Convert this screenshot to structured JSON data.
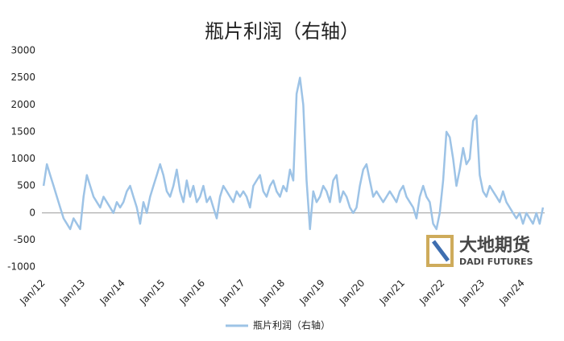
{
  "chart_data": {
    "type": "line",
    "title": "瓶片利润（右轴）",
    "categories": [
      "Jan/12",
      null,
      null,
      null,
      null,
      null,
      null,
      null,
      null,
      null,
      null,
      null,
      "Jan/13",
      null,
      null,
      null,
      null,
      null,
      null,
      null,
      null,
      null,
      null,
      null,
      "Jan/14",
      null,
      null,
      null,
      null,
      null,
      null,
      null,
      null,
      null,
      null,
      null,
      "Jan/15",
      null,
      null,
      null,
      null,
      null,
      null,
      null,
      null,
      null,
      null,
      null,
      "Jan/16",
      null,
      null,
      null,
      null,
      null,
      null,
      null,
      null,
      null,
      null,
      null,
      "Jan/17",
      null,
      null,
      null,
      null,
      null,
      null,
      null,
      null,
      null,
      null,
      null,
      "Jan/18",
      null,
      null,
      null,
      null,
      null,
      null,
      null,
      null,
      null,
      null,
      null,
      "Jan/19",
      null,
      null,
      null,
      null,
      null,
      null,
      null,
      null,
      null,
      null,
      null,
      "Jan/20",
      null,
      null,
      null,
      null,
      null,
      null,
      null,
      null,
      null,
      null,
      null,
      "Jan/21",
      null,
      null,
      null,
      null,
      null,
      null,
      null,
      null,
      null,
      null,
      null,
      "Jan/22",
      null,
      null,
      null,
      null,
      null,
      null,
      null,
      null,
      null,
      null,
      null,
      "Jan/23",
      null,
      null,
      null,
      null,
      null,
      null,
      null,
      null,
      null,
      null,
      null,
      "Jan/24",
      null,
      null,
      null,
      null,
      null,
      null
    ],
    "series": [
      {
        "name": "瓶片利润（右轴）",
        "color": "#9dc3e6",
        "values": [
          500,
          900,
          700,
          500,
          300,
          100,
          -100,
          -200,
          -300,
          -100,
          -200,
          -300,
          300,
          700,
          500,
          300,
          200,
          100,
          300,
          200,
          100,
          0,
          200,
          100,
          200,
          400,
          500,
          300,
          100,
          -200,
          200,
          0,
          300,
          500,
          700,
          900,
          700,
          400,
          300,
          500,
          800,
          400,
          200,
          600,
          300,
          500,
          200,
          300,
          500,
          200,
          300,
          100,
          -100,
          300,
          500,
          400,
          300,
          200,
          400,
          300,
          400,
          300,
          100,
          500,
          600,
          700,
          400,
          300,
          500,
          600,
          400,
          300,
          500,
          400,
          800,
          600,
          2200,
          2500,
          2000,
          600,
          -300,
          400,
          200,
          300,
          500,
          400,
          200,
          600,
          700,
          200,
          400,
          300,
          100,
          0,
          100,
          500,
          800,
          900,
          600,
          300,
          400,
          300,
          200,
          300,
          400,
          300,
          200,
          400,
          500,
          300,
          200,
          100,
          -100,
          300,
          500,
          300,
          200,
          -200,
          -300,
          0,
          600,
          1500,
          1400,
          1000,
          500,
          800,
          1200,
          900,
          1000,
          1700,
          1800,
          700,
          400,
          300,
          500,
          400,
          300,
          200,
          400,
          200,
          100,
          0,
          -100,
          0,
          -200,
          0,
          -100,
          -200,
          0,
          -200,
          100
        ]
      }
    ],
    "ylim": [
      -1000,
      3000
    ],
    "yticks": [
      -1000,
      -500,
      0,
      500,
      1000,
      1500,
      2000,
      2500,
      3000
    ],
    "legend": "bottom"
  },
  "logo": {
    "name": "大地期货",
    "subtitle": "DADI FUTURES"
  }
}
